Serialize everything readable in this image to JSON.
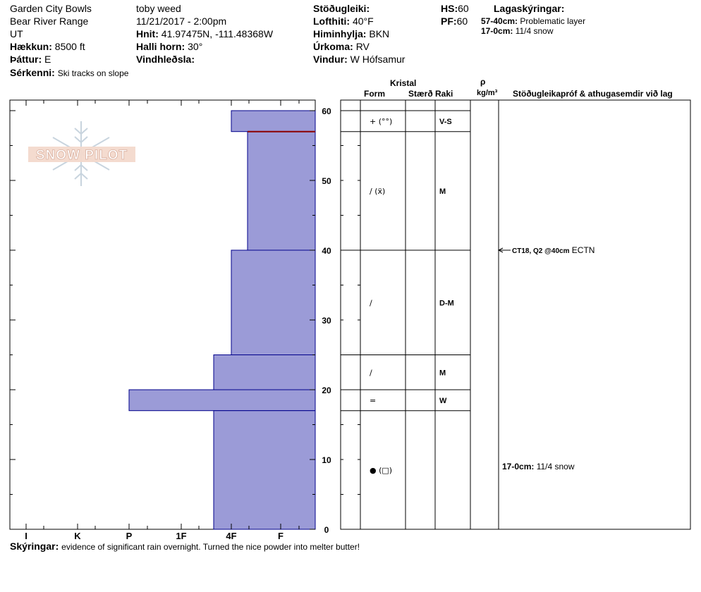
{
  "header": {
    "location": "Garden City Bowls",
    "range": "Bear River Range",
    "state": "UT",
    "elevation_label": "Hækkun:",
    "elevation": "8500 ft",
    "aspect_label": "Þáttur:",
    "aspect": "E",
    "features_label": "Sérkenni:",
    "features": "Ski tracks on slope",
    "observer": "toby weed",
    "datetime": "11/21/2017 - 2:00pm",
    "coords_label": "Hnit:",
    "coords": "41.97475N, -111.48368W",
    "slope_label": "Halli horn:",
    "slope": "30°",
    "wind_loading_label": "Vindhleðsla:",
    "wind_loading": "",
    "stability_label": "Stöðugleiki:",
    "stability": "",
    "airtemp_label": "Lofthiti:",
    "airtemp": "40°F",
    "sky_label": "Himinhylja:",
    "sky": "BKN",
    "precip_label": "Úrkoma:",
    "precip": "RV",
    "wind_label": "Vindur:",
    "wind": "W Hófsamur",
    "hs_label": "HS:",
    "hs": "60",
    "pf_label": "PF:",
    "pf": "60",
    "layers_label": "Lagaskýringar:",
    "layer_notes": [
      {
        "range": "57-40cm:",
        "text": "Problematic layer"
      },
      {
        "range": "17-0cm:",
        "text": "11/4 snow"
      }
    ]
  },
  "logo_text": "SNOW PILOT",
  "columns": {
    "crystal": "Kristal",
    "form": "Form",
    "size": "Stærð",
    "moisture": "Raki",
    "rho": "ρ",
    "density_unit": "kg/m³",
    "tests": "Stöðugleikapróf & athugasemdir við lag"
  },
  "footer": {
    "label": "Skýringar:",
    "text": "evidence of significant rain overnight.  Turned the nice powder into melter butter!"
  },
  "colors": {
    "hardness_fill": "#9b9bd7",
    "hardness_stroke": "#00008b",
    "problem_line": "#8b0000"
  },
  "chart_data": {
    "type": "bar",
    "title": "",
    "xlabel": "",
    "ylabel": "",
    "hardness_scale": [
      "I",
      "K",
      "P",
      "1F",
      "4F",
      "F"
    ],
    "ylim": [
      0,
      60
    ],
    "y_ticks": [
      0,
      10,
      20,
      30,
      40,
      50,
      60
    ],
    "layers": [
      {
        "top": 60,
        "bottom": 57,
        "hardness": "4F",
        "form": "+ (°°)",
        "moisture": "V-S"
      },
      {
        "top": 57,
        "bottom": 40,
        "hardness": "4F+",
        "form": "∕ (ẍ)",
        "moisture": "M"
      },
      {
        "top": 40,
        "bottom": 25,
        "hardness": "4F",
        "form": "∕",
        "moisture": "D-M"
      },
      {
        "top": 25,
        "bottom": 20,
        "hardness": "1F-",
        "form": "∕",
        "moisture": "M"
      },
      {
        "top": 20,
        "bottom": 17,
        "hardness": "P",
        "form": "=",
        "moisture": "W"
      },
      {
        "top": 17,
        "bottom": 0,
        "hardness": "1F-",
        "form": "● (□)",
        "moisture": ""
      }
    ],
    "problem_layer_depth": 57,
    "tests": [
      {
        "depth": 40,
        "code": "CT18, Q2 @40cm",
        "result": "ECTN"
      }
    ],
    "layer_comments": [
      {
        "depth": 9,
        "range": "17-0cm:",
        "text": "11/4 snow"
      }
    ]
  }
}
